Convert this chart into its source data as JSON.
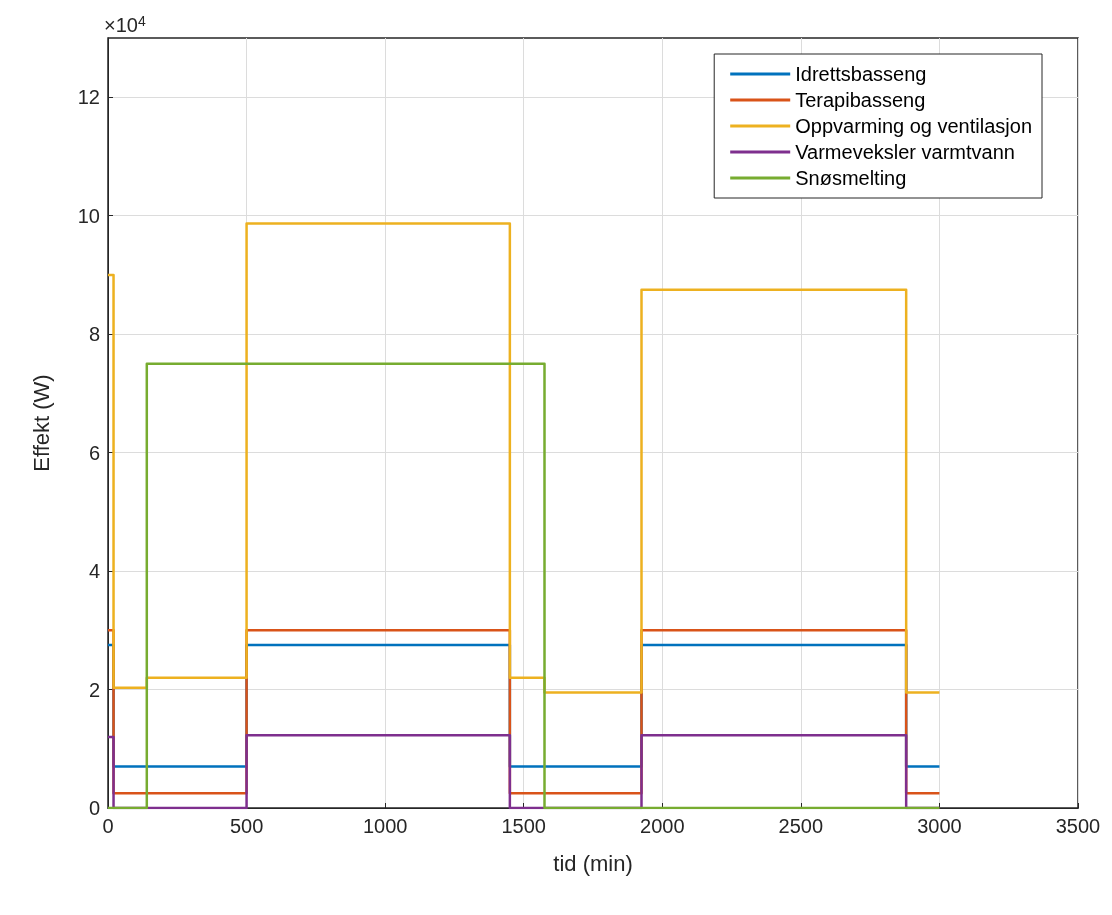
{
  "chart_data": {
    "type": "step",
    "xlabel": "tid (min)",
    "ylabel": "Effekt (W)",
    "annotations": [
      "×10$^{4}$"
    ],
    "x": [
      0,
      20,
      140,
      500,
      1450,
      1575,
      1925,
      2880,
      3000
    ],
    "series": [
      {
        "name": "Idrettsbasseng",
        "color": "#0072bd",
        "values": [
          2.75,
          0.7,
          0.7,
          2.75,
          0.7,
          0.7,
          2.75,
          0.7,
          0.7
        ]
      },
      {
        "name": "Terapibasseng",
        "color": "#d95319",
        "values": [
          3.0,
          0.25,
          0.25,
          3.0,
          0.25,
          0.25,
          3.0,
          0.25,
          0.25
        ]
      },
      {
        "name": "Oppvarming og ventilasjon",
        "color": "#edb120",
        "values": [
          9.0,
          2.03,
          2.2,
          9.87,
          2.2,
          1.95,
          8.75,
          1.95,
          1.95
        ]
      },
      {
        "name": "Varmeveksler varmtvann",
        "color": "#7e2f8e",
        "values": [
          1.2,
          0,
          0,
          1.23,
          0,
          0,
          1.23,
          0,
          0
        ]
      },
      {
        "name": "Snøsmelting",
        "color": "#77ac30",
        "values": [
          0,
          0,
          7.5,
          7.5,
          7.5,
          0,
          0,
          0,
          0
        ]
      }
    ],
    "xlim": [
      0,
      3500
    ],
    "xticks": [
      0,
      500,
      1000,
      1500,
      2000,
      2500,
      3000,
      3500
    ],
    "ylim": [
      0,
      13
    ],
    "yticks": [
      0,
      2,
      4,
      6,
      8,
      10,
      12
    ],
    "grid": true,
    "legend": "top right"
  }
}
